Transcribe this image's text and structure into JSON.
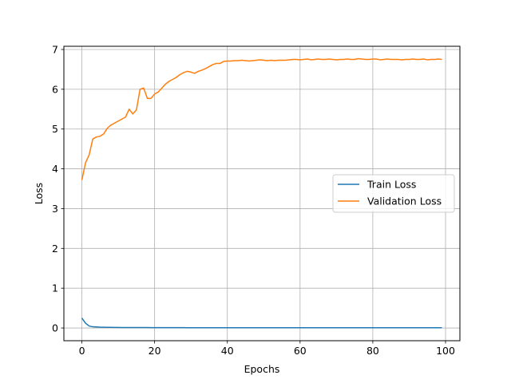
{
  "chart_data": {
    "type": "line",
    "title": "",
    "xlabel": "Epochs",
    "ylabel": "Loss",
    "xlim": [
      -4.95,
      103.95
    ],
    "ylim": [
      -0.32,
      7.08
    ],
    "xticks": [
      0,
      20,
      40,
      60,
      80,
      100
    ],
    "yticks": [
      0,
      1,
      2,
      3,
      4,
      5,
      6,
      7
    ],
    "grid": true,
    "legend": "center-right",
    "series": [
      {
        "name": "Train Loss",
        "color": "#1f77b4",
        "x": [
          0,
          1,
          2,
          3,
          4,
          5,
          6,
          7,
          8,
          9,
          10,
          11,
          12,
          13,
          14,
          15,
          16,
          17,
          18,
          19,
          20,
          21,
          22,
          23,
          24,
          25,
          26,
          27,
          28,
          29,
          30,
          31,
          32,
          33,
          34,
          35,
          36,
          37,
          38,
          39,
          40,
          41,
          42,
          43,
          44,
          45,
          46,
          47,
          48,
          49,
          50,
          51,
          52,
          53,
          54,
          55,
          56,
          57,
          58,
          59,
          60,
          61,
          62,
          63,
          64,
          65,
          66,
          67,
          68,
          69,
          70,
          71,
          72,
          73,
          74,
          75,
          76,
          77,
          78,
          79,
          80,
          81,
          82,
          83,
          84,
          85,
          86,
          87,
          88,
          89,
          90,
          91,
          92,
          93,
          94,
          95,
          96,
          97,
          98,
          99
        ],
        "y": [
          0.25,
          0.12,
          0.05,
          0.03,
          0.025,
          0.02,
          0.018,
          0.016,
          0.015,
          0.014,
          0.013,
          0.012,
          0.012,
          0.011,
          0.011,
          0.01,
          0.01,
          0.01,
          0.01,
          0.009,
          0.009,
          0.009,
          0.009,
          0.008,
          0.008,
          0.008,
          0.008,
          0.008,
          0.008,
          0.007,
          0.007,
          0.007,
          0.007,
          0.007,
          0.007,
          0.007,
          0.006,
          0.006,
          0.006,
          0.006,
          0.006,
          0.006,
          0.006,
          0.006,
          0.006,
          0.005,
          0.005,
          0.005,
          0.005,
          0.005,
          0.005,
          0.005,
          0.005,
          0.005,
          0.005,
          0.005,
          0.005,
          0.005,
          0.005,
          0.005,
          0.005,
          0.005,
          0.005,
          0.005,
          0.005,
          0.005,
          0.005,
          0.005,
          0.005,
          0.005,
          0.005,
          0.005,
          0.005,
          0.005,
          0.005,
          0.005,
          0.005,
          0.005,
          0.005,
          0.005,
          0.005,
          0.005,
          0.005,
          0.005,
          0.005,
          0.005,
          0.005,
          0.005,
          0.005,
          0.005,
          0.005,
          0.005,
          0.005,
          0.005,
          0.005,
          0.005,
          0.005,
          0.005,
          0.005,
          0.005
        ]
      },
      {
        "name": "Validation Loss",
        "color": "#ff7f0e",
        "x": [
          0,
          1,
          2,
          3,
          4,
          5,
          6,
          7,
          8,
          9,
          10,
          11,
          12,
          13,
          14,
          15,
          16,
          17,
          18,
          19,
          20,
          21,
          22,
          23,
          24,
          25,
          26,
          27,
          28,
          29,
          30,
          31,
          32,
          33,
          34,
          35,
          36,
          37,
          38,
          39,
          40,
          41,
          42,
          43,
          44,
          45,
          46,
          47,
          48,
          49,
          50,
          51,
          52,
          53,
          54,
          55,
          56,
          57,
          58,
          59,
          60,
          61,
          62,
          63,
          64,
          65,
          66,
          67,
          68,
          69,
          70,
          71,
          72,
          73,
          74,
          75,
          76,
          77,
          78,
          79,
          80,
          81,
          82,
          83,
          84,
          85,
          86,
          87,
          88,
          89,
          90,
          91,
          92,
          93,
          94,
          95,
          96,
          97,
          98,
          99
        ],
        "y": [
          3.72,
          4.15,
          4.35,
          4.75,
          4.8,
          4.82,
          4.88,
          5.02,
          5.1,
          5.15,
          5.2,
          5.25,
          5.3,
          5.5,
          5.38,
          5.48,
          6.0,
          6.03,
          5.77,
          5.77,
          5.88,
          5.93,
          6.03,
          6.13,
          6.2,
          6.25,
          6.3,
          6.37,
          6.42,
          6.45,
          6.43,
          6.4,
          6.45,
          6.48,
          6.52,
          6.57,
          6.62,
          6.65,
          6.65,
          6.7,
          6.71,
          6.71,
          6.72,
          6.72,
          6.73,
          6.72,
          6.71,
          6.72,
          6.73,
          6.74,
          6.73,
          6.72,
          6.73,
          6.72,
          6.73,
          6.73,
          6.73,
          6.74,
          6.75,
          6.75,
          6.74,
          6.75,
          6.76,
          6.74,
          6.75,
          6.76,
          6.75,
          6.75,
          6.76,
          6.75,
          6.74,
          6.75,
          6.75,
          6.76,
          6.75,
          6.75,
          6.77,
          6.76,
          6.75,
          6.75,
          6.76,
          6.76,
          6.74,
          6.75,
          6.76,
          6.75,
          6.75,
          6.75,
          6.74,
          6.75,
          6.75,
          6.76,
          6.75,
          6.75,
          6.76,
          6.74,
          6.75,
          6.75,
          6.76,
          6.75
        ]
      }
    ]
  }
}
